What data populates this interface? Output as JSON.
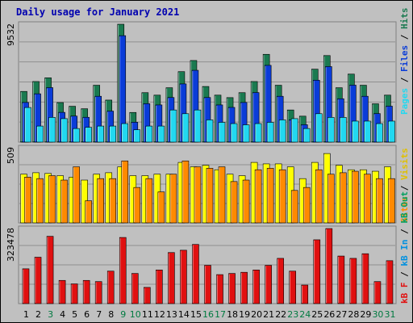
{
  "title": "Daily usage for January 2021",
  "colors": {
    "background": "#c0c0c0",
    "hits": "#1a7a50",
    "files": "#0a3cd8",
    "pages": "#22d8f0",
    "visits": "#ffff00",
    "sites": "#ff8a00",
    "kb_in": "#e01010",
    "kb_out": "#0090e0",
    "weekend_label": "#007a40",
    "weekday_label": "#000000"
  },
  "legend_top": [
    {
      "label": "Pages",
      "color": "#22d8f0"
    },
    {
      "label": "Files",
      "color": "#0a3cd8"
    },
    {
      "label": "Hits",
      "color": "#1a7a50"
    }
  ],
  "legend_mid": [
    {
      "label": "Sites",
      "color": "#ff8a00"
    },
    {
      "label": "Visits",
      "color": "#e0c000"
    }
  ],
  "legend_bot": [
    {
      "label": "kB F",
      "color": "#e01010"
    },
    {
      "label": "kB In",
      "color": "#0090e0"
    },
    {
      "label": "kB Out",
      "color": "#00a060"
    }
  ],
  "legend_sep": " / ",
  "chart_data": [
    {
      "type": "bar",
      "panel": "hits_files_pages",
      "ymax_label": "9532",
      "ylim": [
        0,
        9532
      ],
      "categories": [
        "1",
        "2",
        "3",
        "4",
        "5",
        "6",
        "7",
        "8",
        "9",
        "10",
        "11",
        "12",
        "13",
        "14",
        "15",
        "16",
        "17",
        "18",
        "19",
        "20",
        "21",
        "22",
        "23",
        "24",
        "25",
        "26",
        "27",
        "28",
        "29",
        "30",
        "31"
      ],
      "weekend_days": [
        "3",
        "9",
        "10",
        "16",
        "17",
        "23",
        "24",
        "30",
        "31"
      ],
      "series": [
        {
          "name": "Hits",
          "values": [
            4100,
            4900,
            5200,
            3200,
            2900,
            2700,
            4600,
            3400,
            9532,
            2400,
            4000,
            3800,
            4400,
            5700,
            6600,
            4500,
            3800,
            3600,
            4000,
            4900,
            7100,
            4600,
            2600,
            2100,
            5900,
            7000,
            4400,
            5500,
            4600,
            3100,
            3800
          ]
        },
        {
          "name": "Files",
          "values": [
            3600,
            4300,
            4800,
            2800,
            2500,
            2400,
            4100,
            2900,
            9000,
            2000,
            3500,
            3400,
            4000,
            5100,
            6200,
            4000,
            3400,
            3200,
            3600,
            4400,
            6600,
            4100,
            2200,
            1800,
            5400,
            6500,
            3900,
            5000,
            4100,
            2700,
            3300
          ]
        },
        {
          "name": "Pages",
          "values": [
            2800,
            1300,
            2000,
            1900,
            1100,
            1200,
            1300,
            1300,
            1500,
            1000,
            1300,
            1300,
            2600,
            2300,
            2600,
            1800,
            1600,
            1500,
            1400,
            1500,
            1600,
            1800,
            1900,
            1100,
            2300,
            2000,
            2000,
            1700,
            1700,
            1500,
            1700
          ]
        }
      ]
    },
    {
      "type": "bar",
      "panel": "visits_sites",
      "ymax_label": "509",
      "ylim": [
        0,
        509
      ],
      "categories": [
        "1",
        "2",
        "3",
        "4",
        "5",
        "6",
        "7",
        "8",
        "9",
        "10",
        "11",
        "12",
        "13",
        "14",
        "15",
        "16",
        "17",
        "18",
        "19",
        "20",
        "21",
        "22",
        "23",
        "24",
        "25",
        "26",
        "27",
        "28",
        "29",
        "30",
        "31"
      ],
      "series": [
        {
          "name": "Visits",
          "values": [
            330,
            340,
            335,
            320,
            310,
            290,
            330,
            340,
            380,
            320,
            320,
            330,
            330,
            410,
            380,
            390,
            360,
            330,
            320,
            410,
            400,
            400,
            380,
            300,
            410,
            470,
            390,
            360,
            360,
            350,
            380
          ]
        },
        {
          "name": "Sites",
          "values": [
            310,
            300,
            320,
            290,
            380,
            150,
            300,
            300,
            420,
            240,
            300,
            210,
            330,
            420,
            380,
            370,
            380,
            280,
            290,
            360,
            370,
            360,
            220,
            240,
            360,
            330,
            340,
            350,
            330,
            300,
            300
          ]
        }
      ]
    },
    {
      "type": "bar",
      "panel": "kbytes",
      "ymax_label": "323478",
      "ylim": [
        0,
        323478
      ],
      "categories": [
        "1",
        "2",
        "3",
        "4",
        "5",
        "6",
        "7",
        "8",
        "9",
        "10",
        "11",
        "12",
        "13",
        "14",
        "15",
        "16",
        "17",
        "18",
        "19",
        "20",
        "21",
        "22",
        "23",
        "24",
        "25",
        "26",
        "27",
        "28",
        "29",
        "30",
        "31"
      ],
      "series": [
        {
          "name": "kB F",
          "values": [
            150000,
            200000,
            290000,
            100000,
            85000,
            100000,
            95000,
            140000,
            285000,
            130000,
            70000,
            145000,
            220000,
            230000,
            255000,
            165000,
            125000,
            130000,
            135000,
            145000,
            165000,
            195000,
            140000,
            80000,
            275000,
            323478,
            205000,
            195000,
            215000,
            95000,
            185000
          ]
        }
      ]
    }
  ]
}
